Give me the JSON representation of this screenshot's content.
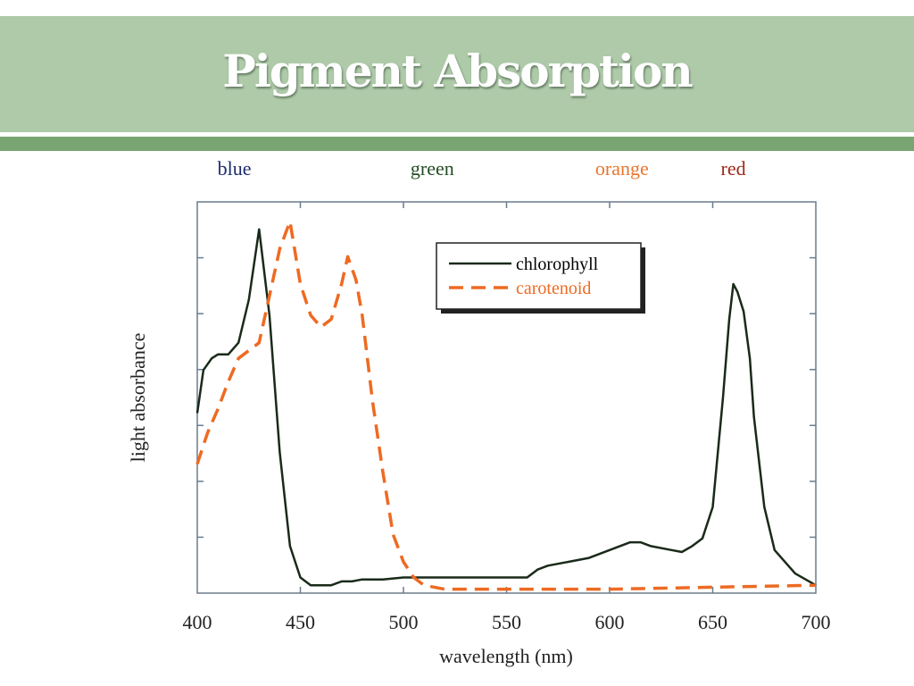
{
  "slide": {
    "title": "Pigment Absorption"
  },
  "chart_data": {
    "type": "line",
    "xlabel": "wavelength (nm)",
    "ylabel": "light absorbance",
    "xlim": [
      400,
      700
    ],
    "ylim": [
      0,
      1
    ],
    "x_ticks": [
      400,
      450,
      500,
      550,
      600,
      650,
      700
    ],
    "y_ticks_labeled": false,
    "grid": false,
    "legend_position": "top-center",
    "color_bands": [
      {
        "label": "blue",
        "x": 418,
        "color": "#1c2b6e"
      },
      {
        "label": "green",
        "x": 514,
        "color": "#244d24"
      },
      {
        "label": "orange",
        "x": 606,
        "color": "#e8762c"
      },
      {
        "label": "red",
        "x": 660,
        "color": "#a0281a"
      }
    ],
    "series": [
      {
        "name": "chlorophyll",
        "color": "#1a2a1a",
        "dash": "solid",
        "x": [
          400,
          403,
          407,
          410,
          415,
          420,
          425,
          430,
          435,
          440,
          445,
          450,
          455,
          460,
          465,
          470,
          475,
          480,
          490,
          500,
          510,
          520,
          530,
          540,
          550,
          560,
          565,
          570,
          580,
          590,
          600,
          605,
          610,
          615,
          620,
          630,
          635,
          640,
          645,
          650,
          655,
          658,
          660,
          662,
          665,
          668,
          670,
          675,
          680,
          690,
          700
        ],
        "y": [
          0.46,
          0.57,
          0.6,
          0.61,
          0.61,
          0.64,
          0.75,
          0.93,
          0.71,
          0.36,
          0.12,
          0.04,
          0.02,
          0.02,
          0.02,
          0.03,
          0.03,
          0.035,
          0.035,
          0.04,
          0.04,
          0.04,
          0.04,
          0.04,
          0.04,
          0.04,
          0.06,
          0.07,
          0.08,
          0.09,
          0.11,
          0.12,
          0.13,
          0.13,
          0.12,
          0.11,
          0.105,
          0.12,
          0.14,
          0.22,
          0.5,
          0.7,
          0.79,
          0.77,
          0.72,
          0.6,
          0.45,
          0.22,
          0.11,
          0.05,
          0.02
        ]
      },
      {
        "name": "carotenoid",
        "color": "#ee6a22",
        "dash": "dashed",
        "x": [
          400,
          405,
          410,
          415,
          420,
          425,
          430,
          435,
          440,
          445,
          450,
          455,
          460,
          465,
          470,
          473,
          477,
          480,
          485,
          490,
          495,
          500,
          505,
          510,
          520,
          550,
          600,
          650,
          700
        ],
        "y": [
          0.33,
          0.41,
          0.47,
          0.54,
          0.6,
          0.62,
          0.64,
          0.76,
          0.88,
          0.95,
          0.79,
          0.71,
          0.68,
          0.7,
          0.79,
          0.86,
          0.8,
          0.71,
          0.49,
          0.31,
          0.15,
          0.08,
          0.04,
          0.02,
          0.01,
          0.01,
          0.01,
          0.015,
          0.02
        ]
      }
    ]
  }
}
